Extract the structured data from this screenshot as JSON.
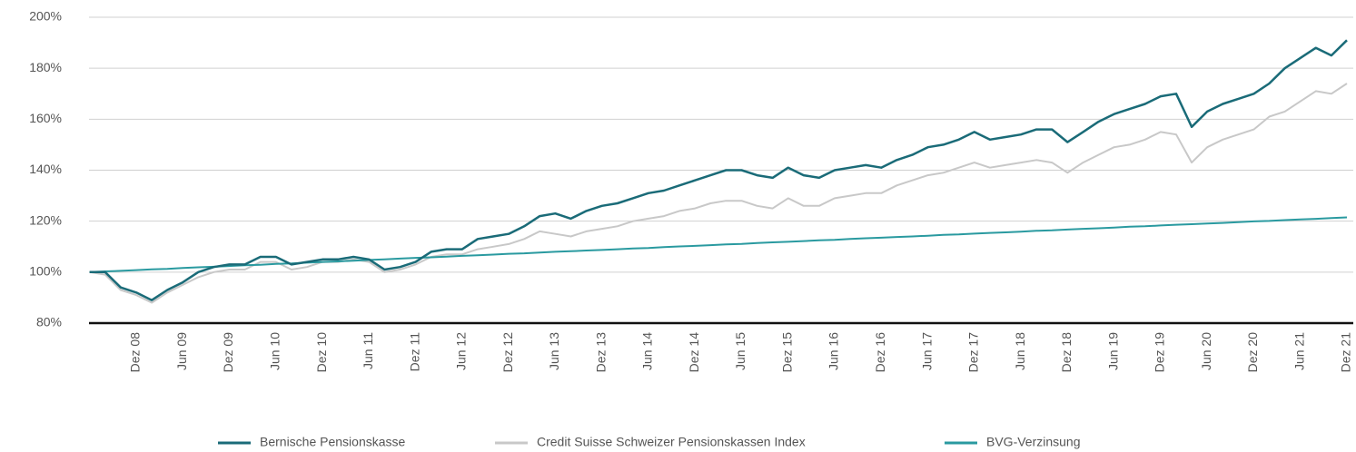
{
  "chart_data": {
    "type": "line",
    "categories": [
      null,
      null,
      null,
      "Dez 08",
      null,
      null,
      "Jun 09",
      null,
      null,
      "Dez 09",
      null,
      null,
      "Jun 10",
      null,
      null,
      "Dez 10",
      null,
      null,
      "Jun 11",
      null,
      null,
      "Dez 11",
      null,
      null,
      "Jun 12",
      null,
      null,
      "Dez 12",
      null,
      null,
      "Jun 13",
      null,
      null,
      "Dez 13",
      null,
      null,
      "Jun 14",
      null,
      null,
      "Dez 14",
      null,
      null,
      "Jun 15",
      null,
      null,
      "Dez 15",
      null,
      null,
      "Jun 16",
      null,
      null,
      "Dez 16",
      null,
      null,
      "Jun 17",
      null,
      null,
      "Dez 17",
      null,
      null,
      "Jun 18",
      null,
      null,
      "Dez 18",
      null,
      null,
      "Jun 19",
      null,
      null,
      "Dez 19",
      null,
      null,
      "Jun 20",
      null,
      null,
      "Dez 20",
      null,
      null,
      "Jun 21",
      null,
      null,
      "Dez 21"
    ],
    "series": [
      {
        "name": "Credit Suisse Schweizer Pensionskassen Index",
        "color": "#c8c8c8",
        "values": [
          100,
          99,
          93,
          91,
          88,
          92,
          95,
          98,
          100,
          101,
          101,
          104,
          104,
          101,
          102,
          104,
          104,
          105,
          104,
          100,
          101,
          103,
          106,
          107,
          107,
          109,
          110,
          111,
          113,
          116,
          115,
          114,
          116,
          117,
          118,
          120,
          121,
          122,
          124,
          125,
          127,
          128,
          128,
          126,
          125,
          129,
          126,
          126,
          129,
          130,
          131,
          131,
          134,
          136,
          138,
          139,
          141,
          143,
          141,
          142,
          143,
          144,
          143,
          139,
          143,
          146,
          149,
          150,
          152,
          155,
          154,
          143,
          149,
          152,
          154,
          156,
          161,
          163,
          167,
          171,
          170,
          174
        ]
      },
      {
        "name": "BVG-Verzinsung",
        "color": "#2a9aa0",
        "values": [
          100,
          100.3,
          100.5,
          100.8,
          101.1,
          101.3,
          101.6,
          101.9,
          102.1,
          102.4,
          102.7,
          102.9,
          103.2,
          103.4,
          103.7,
          104.0,
          104.2,
          104.5,
          104.8,
          105.0,
          105.3,
          105.6,
          105.8,
          106.1,
          106.4,
          106.6,
          106.9,
          107.2,
          107.4,
          107.7,
          108.0,
          108.2,
          108.5,
          108.7,
          109.0,
          109.3,
          109.5,
          109.8,
          110.1,
          110.3,
          110.6,
          110.9,
          111.1,
          111.4,
          111.7,
          111.9,
          112.2,
          112.5,
          112.7,
          113.0,
          113.3,
          113.5,
          113.8,
          114.0,
          114.3,
          114.6,
          114.8,
          115.1,
          115.4,
          115.6,
          115.9,
          116.2,
          116.4,
          116.7,
          117.0,
          117.2,
          117.5,
          117.8,
          118.0,
          118.3,
          118.6,
          118.8,
          119.1,
          119.3,
          119.6,
          119.9,
          120.1,
          120.4,
          120.7,
          120.9,
          121.2,
          121.5
        ]
      },
      {
        "name": "Bernische Pensionskasse",
        "color": "#1a6b78",
        "values": [
          100,
          100,
          94,
          92,
          89,
          93,
          96,
          100,
          102,
          103,
          103,
          106,
          106,
          103,
          104,
          105,
          105,
          106,
          105,
          101,
          102,
          104,
          108,
          109,
          109,
          113,
          114,
          115,
          118,
          122,
          123,
          121,
          124,
          126,
          127,
          129,
          131,
          132,
          134,
          136,
          138,
          140,
          140,
          138,
          137,
          141,
          138,
          137,
          140,
          141,
          142,
          141,
          144,
          146,
          149,
          150,
          152,
          155,
          152,
          153,
          154,
          156,
          156,
          151,
          155,
          159,
          162,
          164,
          166,
          169,
          170,
          157,
          163,
          166,
          168,
          170,
          174,
          180,
          184,
          188,
          185,
          191
        ]
      }
    ],
    "ylim": [
      80,
      200
    ],
    "yticks": [
      {
        "value": 80,
        "label": "80%"
      },
      {
        "value": 100,
        "label": "100%"
      },
      {
        "value": 120,
        "label": "120%"
      },
      {
        "value": 140,
        "label": "140%"
      },
      {
        "value": 160,
        "label": "160%"
      },
      {
        "value": 180,
        "label": "180%"
      },
      {
        "value": 200,
        "label": "200%"
      }
    ],
    "grid": true,
    "legend": "bottom"
  }
}
